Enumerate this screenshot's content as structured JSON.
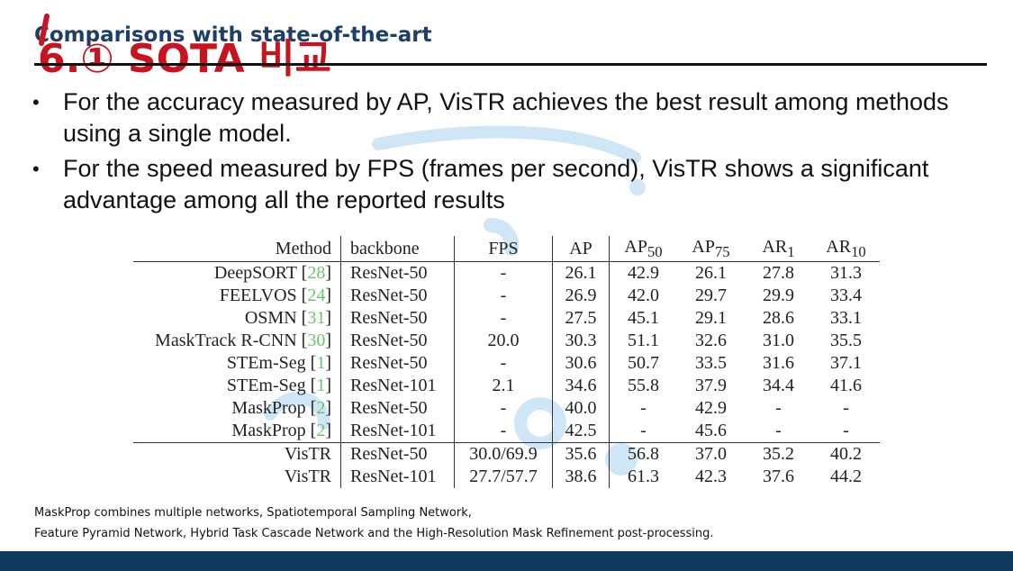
{
  "slide": {
    "title": "Comparisons with state-of-the-art",
    "handwritten_note": "6.① SOTA 비교",
    "bullets": [
      "For the accuracy measured by AP, VisTR achieves the best result among methods using a single model.",
      "For the speed measured by FPS (frames per second), VisTR shows a significant advantage among all the reported results"
    ],
    "bullet_glyph": "•",
    "footnotes": [
      "MaskProp combines multiple networks, Spatiotemporal Sampling Network,",
      "Feature Pyramid Network, Hybrid Task Cascade Network and the High-Resolution Mask Refinement post-processing."
    ]
  },
  "table": {
    "headers": {
      "method": "Method",
      "backbone": "backbone",
      "fps": "FPS",
      "ap": "AP",
      "ap50": "AP",
      "ap50_sub": "50",
      "ap75": "AP",
      "ap75_sub": "75",
      "ar1": "AR",
      "ar1_sub": "1",
      "ar10": "AR",
      "ar10_sub": "10"
    },
    "rows": [
      {
        "method": "DeepSORT",
        "ref": "28",
        "backbone": "ResNet-50",
        "fps": "-",
        "ap": "26.1",
        "ap50": "42.9",
        "ap75": "26.1",
        "ar1": "27.8",
        "ar10": "31.3"
      },
      {
        "method": "FEELVOS",
        "ref": "24",
        "backbone": "ResNet-50",
        "fps": "-",
        "ap": "26.9",
        "ap50": "42.0",
        "ap75": "29.7",
        "ar1": "29.9",
        "ar10": "33.4"
      },
      {
        "method": "OSMN",
        "ref": "31",
        "backbone": "ResNet-50",
        "fps": "-",
        "ap": "27.5",
        "ap50": "45.1",
        "ap75": "29.1",
        "ar1": "28.6",
        "ar10": "33.1"
      },
      {
        "method": "MaskTrack R-CNN",
        "ref": "30",
        "backbone": "ResNet-50",
        "fps": "20.0",
        "ap": "30.3",
        "ap50": "51.1",
        "ap75": "32.6",
        "ar1": "31.0",
        "ar10": "35.5"
      },
      {
        "method": "STEm-Seg",
        "ref": "1",
        "backbone": "ResNet-50",
        "fps": "-",
        "ap": "30.6",
        "ap50": "50.7",
        "ap75": "33.5",
        "ar1": "31.6",
        "ar10": "37.1"
      },
      {
        "method": "STEm-Seg",
        "ref": "1",
        "backbone": "ResNet-101",
        "fps": "2.1",
        "ap": "34.6",
        "ap50": "55.8",
        "ap75": "37.9",
        "ar1": "34.4",
        "ar10": "41.6"
      },
      {
        "method": "MaskProp",
        "ref": "2",
        "backbone": "ResNet-50",
        "fps": "-",
        "ap": "40.0",
        "ap50": "-",
        "ap75": "42.9",
        "ar1": "-",
        "ar10": "-"
      },
      {
        "method": "MaskProp",
        "ref": "2",
        "backbone": "ResNet-101",
        "fps": "-",
        "ap": "42.5",
        "ap50": "-",
        "ap75": "45.6",
        "ar1": "-",
        "ar10": "-"
      }
    ],
    "ours": [
      {
        "method": "VisTR",
        "backbone": "ResNet-50",
        "fps": "30.0/69.9",
        "ap": "35.6",
        "ap50": "56.8",
        "ap75": "37.0",
        "ar1": "35.2",
        "ar10": "40.2"
      },
      {
        "method": "VisTR",
        "backbone": "ResNet-101",
        "fps": "27.7/57.7",
        "ap": "38.6",
        "ap50": "61.3",
        "ap75": "42.3",
        "ar1": "37.6",
        "ar10": "44.2"
      }
    ]
  },
  "colors": {
    "title": "#1d3f66",
    "handwriting": "#c8141e",
    "reference": "#6bc46b",
    "watermark": "#9ccbec",
    "bottom_bar": "#123a5e"
  }
}
